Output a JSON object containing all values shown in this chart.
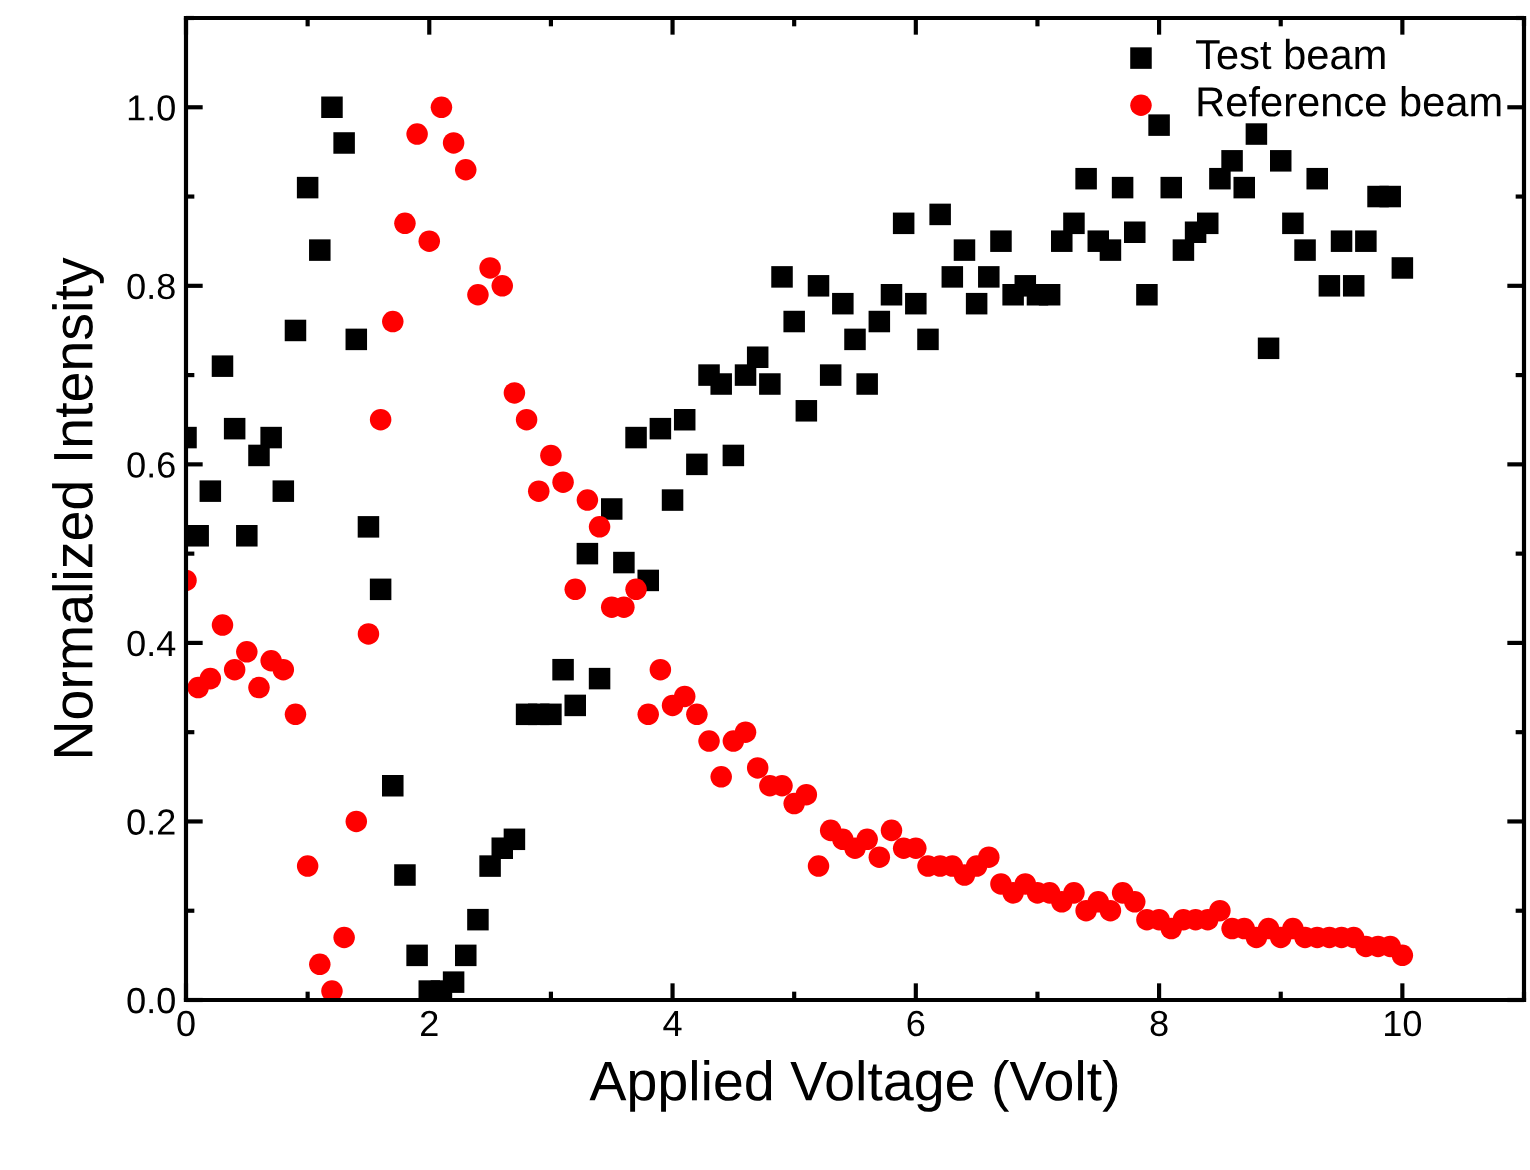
{
  "chart_data": {
    "type": "scatter",
    "xlabel": "Applied Voltage (Volt)",
    "ylabel": "Normalized Intensity",
    "xlim": [
      0,
      11
    ],
    "xticks": [
      0,
      2,
      4,
      6,
      8,
      10
    ],
    "ylim": [
      0,
      1.1
    ],
    "yticks": [
      {
        "value": 0,
        "label": "0.0"
      },
      0.2,
      0.4,
      0.6,
      0.8,
      {
        "value": 1,
        "label": "1.0"
      }
    ],
    "x": [
      0,
      0.1,
      0.2,
      0.3,
      0.4,
      0.5,
      0.6,
      0.7,
      0.8,
      0.9,
      1,
      1.1,
      1.2,
      1.3,
      1.4,
      1.5,
      1.6,
      1.7,
      1.8,
      1.9,
      2,
      2.1,
      2.2,
      2.3,
      2.4,
      2.5,
      2.6,
      2.7,
      2.8,
      2.9,
      3,
      3.1,
      3.2,
      3.3,
      3.4,
      3.5,
      3.6,
      3.7,
      3.8,
      3.9,
      4,
      4.1,
      4.2,
      4.3,
      4.4,
      4.5,
      4.6,
      4.7,
      4.8,
      4.9,
      5,
      5.1,
      5.2,
      5.3,
      5.4,
      5.5,
      5.6,
      5.7,
      5.8,
      5.9,
      6,
      6.1,
      6.2,
      6.3,
      6.4,
      6.5,
      6.6,
      6.7,
      6.8,
      6.9,
      7,
      7.1,
      7.2,
      7.3,
      7.4,
      7.5,
      7.6,
      7.7,
      7.8,
      7.9,
      8,
      8.1,
      8.2,
      8.3,
      8.4,
      8.5,
      8.6,
      8.7,
      8.8,
      8.9,
      9,
      9.1,
      9.2,
      9.3,
      9.4,
      9.5,
      9.6,
      9.7,
      9.8,
      9.9,
      10
    ],
    "series": [
      {
        "name": "Test beam",
        "color": "#000000",
        "marker": "square",
        "values": [
          0.63,
          0.52,
          0.57,
          0.71,
          0.64,
          0.52,
          0.61,
          0.63,
          0.57,
          0.75,
          0.91,
          0.84,
          1.0,
          0.96,
          0.74,
          0.53,
          0.46,
          0.24,
          0.14,
          0.05,
          0.01,
          0.01,
          0.02,
          0.05,
          0.09,
          0.15,
          0.17,
          0.18,
          0.32,
          0.32,
          0.32,
          0.37,
          0.33,
          0.5,
          0.36,
          0.55,
          0.49,
          0.63,
          0.47,
          0.64,
          0.56,
          0.65,
          0.6,
          0.7,
          0.69,
          0.61,
          0.7,
          0.72,
          0.69,
          0.81,
          0.76,
          0.66,
          0.8,
          0.7,
          0.78,
          0.74,
          0.69,
          0.76,
          0.79,
          0.87,
          0.78,
          0.74,
          0.88,
          0.81,
          0.84,
          0.78,
          0.81,
          0.85,
          0.79,
          0.8,
          0.79,
          0.79,
          0.85,
          0.87,
          0.92,
          0.85,
          0.84,
          0.91,
          0.86,
          0.79,
          0.98,
          0.91,
          0.84,
          0.86,
          0.87,
          0.92,
          0.94,
          0.91,
          0.97,
          0.73,
          0.94,
          0.87,
          0.84,
          0.92,
          0.8,
          0.85,
          0.8,
          0.85,
          0.9,
          0.9,
          0.82
        ]
      },
      {
        "name": "Reference beam",
        "color": "#ff0000",
        "marker": "circle",
        "values": [
          0.47,
          0.35,
          0.36,
          0.42,
          0.37,
          0.39,
          0.35,
          0.38,
          0.37,
          0.32,
          0.15,
          0.04,
          0.01,
          0.07,
          0.2,
          0.41,
          0.65,
          0.76,
          0.87,
          0.97,
          0.85,
          1.0,
          0.96,
          0.93,
          0.79,
          0.82,
          0.8,
          0.68,
          0.65,
          0.57,
          0.61,
          0.58,
          0.46,
          0.56,
          0.53,
          0.44,
          0.44,
          0.46,
          0.32,
          0.37,
          0.33,
          0.34,
          0.32,
          0.29,
          0.25,
          0.29,
          0.3,
          0.26,
          0.24,
          0.24,
          0.22,
          0.23,
          0.15,
          0.19,
          0.18,
          0.17,
          0.18,
          0.16,
          0.19,
          0.17,
          0.17,
          0.15,
          0.15,
          0.15,
          0.14,
          0.15,
          0.16,
          0.13,
          0.12,
          0.13,
          0.12,
          0.12,
          0.11,
          0.12,
          0.1,
          0.11,
          0.1,
          0.12,
          0.11,
          0.09,
          0.09,
          0.08,
          0.09,
          0.09,
          0.09,
          0.1,
          0.08,
          0.08,
          0.07,
          0.08,
          0.07,
          0.08,
          0.07,
          0.07,
          0.07,
          0.07,
          0.07,
          0.06,
          0.06,
          0.06,
          0.05
        ]
      }
    ],
    "legend": "top right",
    "grid": false
  }
}
